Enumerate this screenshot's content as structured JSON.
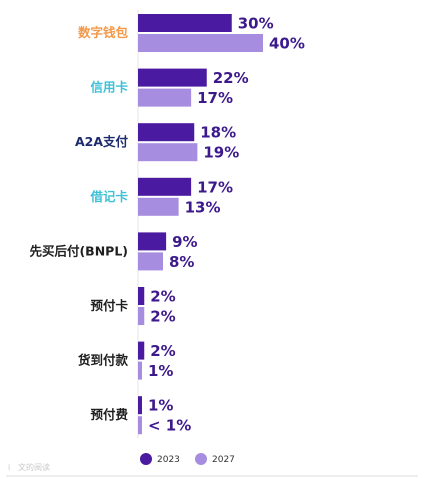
{
  "chart_data": {
    "type": "bar",
    "orientation": "horizontal",
    "categories": [
      "数字钱包",
      "信用卡",
      "A2A支付",
      "借记卡",
      "先买后付(BNPL)",
      "预付卡",
      "货到付款",
      "预付费"
    ],
    "category_colors": [
      "#f2994a",
      "#3fc1d8",
      "#1e2a6e",
      "#3fc1d8",
      "#1f1f1f",
      "#1f1f1f",
      "#1f1f1f",
      "#1f1f1f"
    ],
    "series": [
      {
        "name": "2023",
        "color": "#4a1aa0",
        "values": [
          30,
          22,
          18,
          17,
          9,
          2,
          2,
          1
        ],
        "labels": [
          "30%",
          "22%",
          "18%",
          "17%",
          "9%",
          "2%",
          "2%",
          "1%"
        ]
      },
      {
        "name": "2027",
        "color": "#a78de0",
        "values": [
          40,
          17,
          19,
          13,
          8,
          2,
          1,
          0.5
        ],
        "labels": [
          "40%",
          "17%",
          "19%",
          "13%",
          "8%",
          "2%",
          "1%",
          "< 1%"
        ]
      }
    ],
    "xlim": [
      0,
      40
    ],
    "grid": false,
    "legend_position": "bottom"
  },
  "legend": {
    "items": [
      {
        "label": "2023",
        "color": "#4a1aa0"
      },
      {
        "label": "2027",
        "color": "#a78de0"
      }
    ]
  },
  "watermark": {
    "text": "文的阅读"
  }
}
